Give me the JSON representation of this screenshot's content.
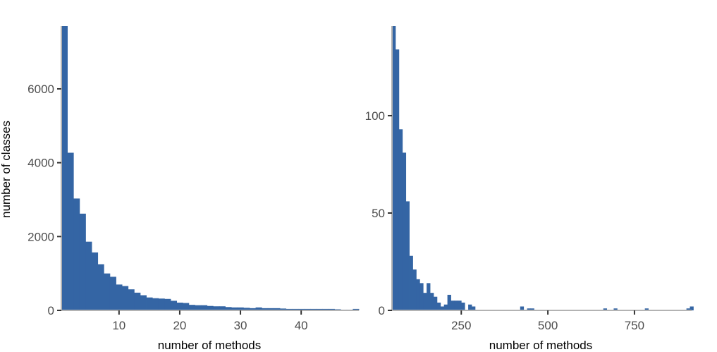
{
  "chart_data": [
    {
      "type": "bar",
      "panel": "left",
      "xlabel": "number of methods",
      "ylabel": "number of classes",
      "xlim": [
        0.5,
        49.5
      ],
      "ylim": [
        0,
        7700
      ],
      "xticks": [
        10,
        20,
        30,
        40
      ],
      "yticks": [
        0,
        2000,
        4000,
        6000
      ],
      "x": [
        1,
        2,
        3,
        4,
        5,
        6,
        7,
        8,
        9,
        10,
        11,
        12,
        13,
        14,
        15,
        16,
        17,
        18,
        19,
        20,
        21,
        22,
        23,
        24,
        25,
        26,
        27,
        28,
        29,
        30,
        31,
        32,
        33,
        34,
        35,
        36,
        37,
        38,
        39,
        40,
        41,
        42,
        43,
        44,
        45,
        46,
        47,
        48,
        49
      ],
      "values": [
        7700,
        4270,
        3030,
        2620,
        1860,
        1570,
        1250,
        1000,
        910,
        700,
        660,
        570,
        480,
        410,
        350,
        330,
        320,
        310,
        260,
        210,
        200,
        150,
        140,
        140,
        120,
        110,
        110,
        90,
        80,
        80,
        70,
        60,
        80,
        60,
        60,
        60,
        50,
        40,
        40,
        40,
        40,
        40,
        40,
        40,
        40,
        30,
        20,
        20,
        40
      ],
      "grid": false
    },
    {
      "type": "bar",
      "panel": "right",
      "xlabel": "number of methods",
      "ylabel": "",
      "xlim": [
        50,
        915
      ],
      "ylim": [
        0,
        146
      ],
      "xticks": [
        250,
        500,
        750
      ],
      "yticks": [
        0,
        50,
        100
      ],
      "bin_width": 10,
      "x": [
        55,
        65,
        75,
        85,
        95,
        105,
        115,
        125,
        135,
        145,
        155,
        165,
        175,
        185,
        195,
        205,
        215,
        225,
        235,
        245,
        255,
        275,
        285,
        425,
        445,
        455,
        665,
        695,
        785,
        905,
        915
      ],
      "values": [
        146,
        134,
        93,
        81,
        56,
        28,
        21,
        16,
        14,
        9,
        14,
        9,
        7,
        4,
        2,
        3,
        8,
        5,
        5,
        5,
        4,
        3,
        2,
        2,
        1,
        1,
        1,
        1,
        1,
        1,
        2
      ],
      "grid": false
    }
  ]
}
